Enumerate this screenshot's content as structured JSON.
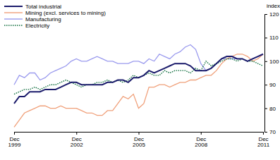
{
  "chart_data": {
    "type": "line",
    "y_label": "index",
    "categories": [
      "Dec 1999",
      null,
      null,
      null,
      null,
      null,
      null,
      null,
      null,
      null,
      null,
      null,
      "Dec 2002",
      null,
      null,
      null,
      null,
      null,
      null,
      null,
      null,
      null,
      null,
      null,
      "Dec 2005",
      null,
      null,
      null,
      null,
      null,
      null,
      null,
      null,
      null,
      null,
      null,
      "Dec 2008",
      null,
      null,
      null,
      null,
      null,
      null,
      null,
      null,
      null,
      null,
      null,
      "Dec 2011"
    ],
    "ylim": [
      70,
      120
    ],
    "yticks": [
      70,
      80,
      90,
      100,
      110,
      120
    ],
    "grid": false,
    "legend": "top-left",
    "series": [
      {
        "name": "Total industrial",
        "color": "#1b1b6b",
        "line_style": "solid",
        "values": [
          82,
          85,
          85,
          87,
          87,
          87,
          88,
          88,
          88,
          89,
          90,
          91,
          91,
          90,
          90,
          90,
          90,
          90,
          91,
          91,
          92,
          92,
          91,
          93,
          93,
          94,
          96,
          95,
          96,
          97,
          98,
          99,
          99,
          99,
          98,
          96,
          96,
          96,
          97,
          99,
          101,
          102,
          102,
          101,
          101,
          100,
          101,
          102,
          103
        ]
      },
      {
        "name": "Mining (excl. services to mining)",
        "color": "#f0a07a",
        "line_style": "solid",
        "values": [
          72,
          75,
          78,
          79,
          80,
          81,
          81,
          80,
          80,
          81,
          80,
          80,
          80,
          79,
          78,
          78,
          77,
          77,
          79,
          79,
          82,
          85,
          84,
          86,
          80,
          82,
          89,
          89,
          90,
          90,
          89,
          90,
          91,
          91,
          92,
          92,
          93,
          94,
          94,
          96,
          99,
          101,
          102,
          103,
          103,
          102,
          100,
          101,
          103
        ]
      },
      {
        "name": "Manufacturing",
        "color": "#9a9aee",
        "line_style": "solid",
        "values": [
          90,
          94,
          93,
          95,
          95,
          92,
          93,
          95,
          96,
          97,
          98,
          100,
          101,
          100,
          100,
          101,
          102,
          101,
          100,
          100,
          99,
          99,
          99,
          100,
          100,
          99,
          101,
          100,
          103,
          102,
          101,
          103,
          104,
          106,
          107,
          105,
          99,
          96,
          97,
          99,
          101,
          101,
          101,
          101,
          101,
          100,
          101,
          102,
          103
        ]
      },
      {
        "name": "Electricity",
        "color": "#0b6b3a",
        "line_style": "dotted",
        "values": [
          86,
          87,
          88,
          88,
          89,
          88,
          89,
          90,
          90,
          91,
          92,
          91,
          90,
          89,
          90,
          90,
          91,
          91,
          92,
          91,
          92,
          91,
          92,
          94,
          93,
          94,
          95,
          94,
          94,
          96,
          95,
          96,
          96,
          96,
          95,
          97,
          96,
          100,
          98,
          99,
          100,
          101,
          101,
          100,
          101,
          100,
          100,
          99,
          98
        ]
      }
    ]
  }
}
